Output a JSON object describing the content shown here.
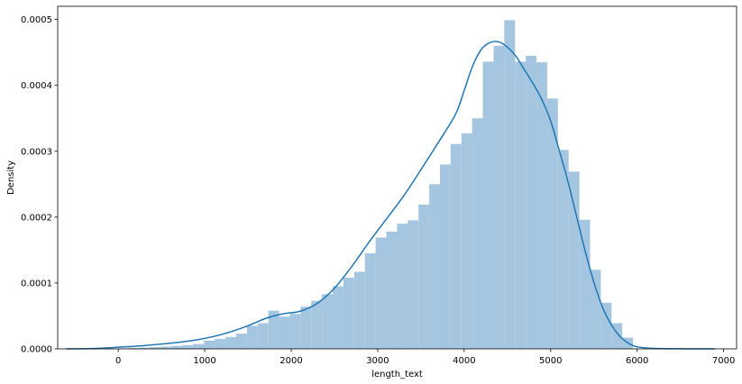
{
  "chart_data": {
    "type": "histogram",
    "title": "",
    "xlabel": "length_text",
    "ylabel": "Density",
    "xlim": [
      -700,
      7150
    ],
    "ylim": [
      0,
      0.00052
    ],
    "xticks": [
      0,
      1000,
      2000,
      3000,
      4000,
      5000,
      6000,
      7000
    ],
    "xtick_labels": [
      "0",
      "1000",
      "2000",
      "3000",
      "4000",
      "5000",
      "6000",
      "7000"
    ],
    "yticks": [
      0,
      0.0001,
      0.0002,
      0.0003,
      0.0004,
      0.0005
    ],
    "ytick_labels": [
      "0.0000",
      "0.0001",
      "0.0002",
      "0.0003",
      "0.0004",
      "0.0005"
    ],
    "grid": false,
    "colors": {
      "bars": "#a4c6e0",
      "kde": "#1f77b4",
      "axes": "#000000"
    },
    "histogram": {
      "bin_edges": [
        0,
        124,
        248,
        372,
        496,
        620,
        744,
        868,
        992,
        1116,
        1240,
        1364,
        1488,
        1612,
        1736,
        1860,
        1984,
        2108,
        2232,
        2356,
        2480,
        2604,
        2728,
        2852,
        2976,
        3100,
        3224,
        3348,
        3472,
        3596,
        3720,
        3844,
        3968,
        4092,
        4216,
        4340,
        4464,
        4588,
        4712,
        4836,
        4960,
        5084,
        5208,
        5332,
        5456,
        5580,
        5704,
        5828,
        5952
      ],
      "densities": [
        8e-07,
        1.3e-06,
        1.9e-06,
        2.6e-06,
        3.5e-06,
        4.5e-06,
        5.7e-06,
        7.2e-06,
        1.25e-05,
        1.5e-05,
        1.8e-05,
        2.3e-05,
        3.5e-05,
        3.9e-05,
        5.8e-05,
        4.9e-05,
        5.3e-05,
        6.4e-05,
        7.3e-05,
        8.3e-05,
        9.5e-05,
        0.000108,
        0.000117,
        0.000145,
        0.000169,
        0.000178,
        0.00019,
        0.000195,
        0.000219,
        0.00025,
        0.00028,
        0.000311,
        0.000327,
        0.00035,
        0.000436,
        0.00046,
        0.000499,
        0.000436,
        0.000445,
        0.000435,
        0.00038,
        0.000302,
        0.000269,
        0.000196,
        0.00012,
        7e-05,
        3.9e-05,
        1.7e-05
      ]
    },
    "kde": {
      "x": [
        -600,
        -300,
        0,
        300,
        600,
        900,
        1200,
        1500,
        1700,
        1900,
        2100,
        2300,
        2500,
        2700,
        2900,
        3100,
        3300,
        3500,
        3700,
        3900,
        4000,
        4100,
        4200,
        4300,
        4400,
        4500,
        4600,
        4700,
        4800,
        4900,
        5000,
        5100,
        5200,
        5300,
        5400,
        5500,
        5600,
        5700,
        5800,
        5900,
        6000,
        6200,
        6500,
        6900
      ],
      "y": [
        0,
        5e-07,
        2.5e-06,
        5e-06,
        8.5e-06,
        1.35e-05,
        2.2e-05,
        3.5e-05,
        4.6e-05,
        5.3e-05,
        5.7e-05,
        6.9e-05,
        9.2e-05,
        0.000125,
        0.000162,
        0.000197,
        0.000232,
        0.000272,
        0.000313,
        0.000356,
        0.000392,
        0.00043,
        0.000455,
        0.000465,
        0.000466,
        0.000458,
        0.000444,
        0.000423,
        0.000402,
        0.000378,
        0.000346,
        0.000301,
        0.000254,
        0.000201,
        0.000148,
        0.000101,
        6.3e-05,
        3.7e-05,
        1.9e-05,
        8.5e-06,
        3e-06,
        6e-07,
        1e-07,
        0
      ]
    }
  }
}
